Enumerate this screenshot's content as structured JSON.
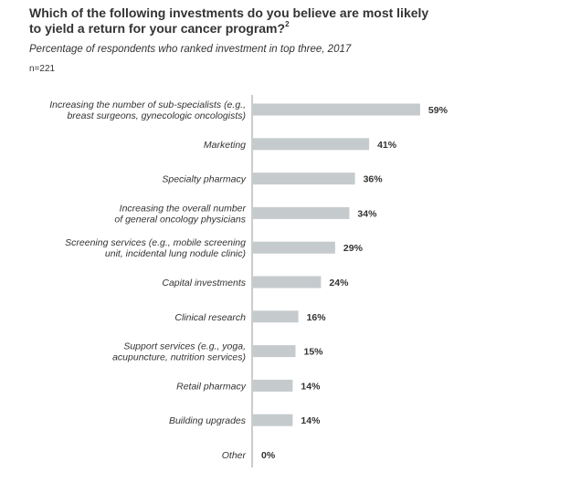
{
  "title": "Which of the following investments do you believe are most likely to yield a return for your cancer program?",
  "title_footnote": "2",
  "subtitle": "Percentage of respondents who ranked investment in top three, 2017",
  "sample_size": "n=221",
  "colors": {
    "bar": "#c5cacd",
    "axis": "#999999",
    "text": "#333333"
  },
  "chart_data": {
    "type": "bar",
    "orientation": "horizontal",
    "categories": [
      [
        "Increasing the number of sub-specialists (e.g.,",
        "breast surgeons, gynecologic oncologists)"
      ],
      [
        "Marketing"
      ],
      [
        "Specialty pharmacy"
      ],
      [
        "Increasing the overall number",
        "of general oncology physicians"
      ],
      [
        "Screening services (e.g., mobile screening",
        "unit, incidental lung nodule clinic)"
      ],
      [
        "Capital investments"
      ],
      [
        "Clinical research"
      ],
      [
        "Support services (e.g., yoga,",
        "acupuncture, nutrition services)"
      ],
      [
        "Retail pharmacy"
      ],
      [
        "Building upgrades"
      ],
      [
        "Other"
      ]
    ],
    "values": [
      59,
      41,
      36,
      34,
      29,
      24,
      16,
      15,
      14,
      14,
      0
    ],
    "value_labels": [
      "59%",
      "41%",
      "36%",
      "34%",
      "29%",
      "24%",
      "16%",
      "15%",
      "14%",
      "14%",
      "0%"
    ],
    "unit": "%",
    "xlim": [
      0,
      100
    ],
    "grid": false,
    "legend": "none"
  }
}
